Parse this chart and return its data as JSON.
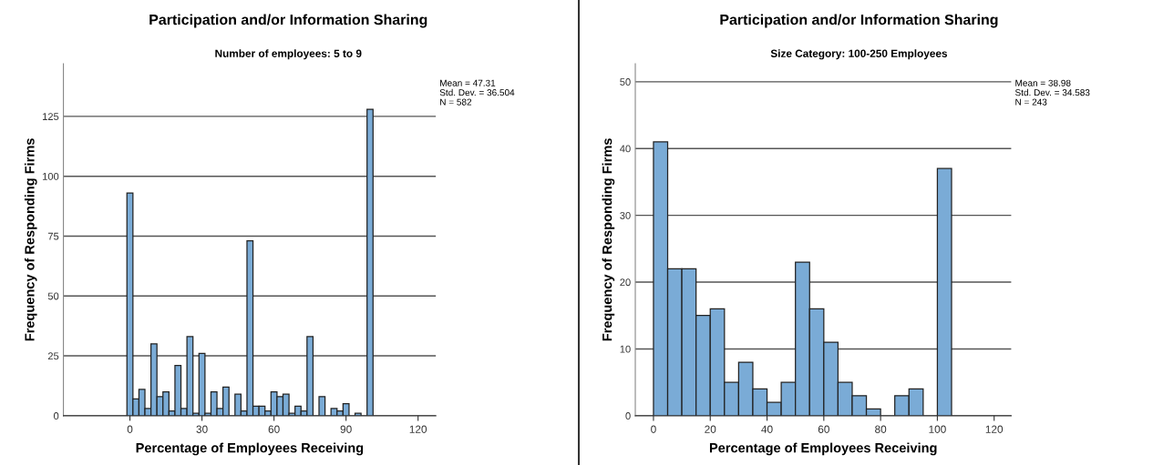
{
  "chart_data": [
    {
      "type": "histogram",
      "title": "Participation and/or Information Sharing",
      "subtitle": "Number of employees: 5 to 9",
      "xlabel": "Percentage of Employees Receiving",
      "ylabel": "Frequency of Responding Firms",
      "bins": [
        -1.25,
        1.25,
        3.75,
        6.25,
        8.75,
        11.25,
        13.75,
        16.25,
        18.75,
        21.25,
        23.75,
        26.25,
        28.75,
        31.25,
        33.75,
        36.25,
        38.75,
        41.25,
        43.75,
        46.25,
        48.75,
        51.25,
        53.75,
        56.25,
        58.75,
        61.25,
        63.75,
        66.25,
        68.75,
        71.25,
        73.75,
        76.25,
        78.75,
        81.25,
        83.75,
        86.25,
        88.75,
        91.25,
        93.75,
        96.25,
        98.75,
        101.25
      ],
      "values": [
        93,
        7,
        11,
        3,
        30,
        8,
        10,
        2,
        21,
        3,
        33,
        1,
        26,
        1,
        10,
        3,
        12,
        0,
        9,
        2,
        73,
        4,
        4,
        2,
        10,
        8,
        9,
        1,
        4,
        2,
        33,
        0,
        8,
        0,
        3,
        2,
        5,
        0,
        1,
        0,
        128
      ],
      "color": "#7aabd6",
      "xlim": [
        -27.7,
        127.4
      ],
      "xticks": [
        0,
        30,
        60,
        90,
        120
      ],
      "ylim": [
        0,
        147
      ],
      "yticks": [
        0,
        25,
        50,
        75,
        100,
        125
      ],
      "grid": "y",
      "annotations": [
        "Mean = 47.31",
        "Std. Dev. = 36.504",
        "N = 582"
      ]
    },
    {
      "type": "histogram",
      "title": "Participation and/or Information Sharing",
      "subtitle": "Size Category: 100-250 Employees",
      "xlabel": "Percentage of Employees Receiving",
      "ylabel": "Frequency of Responding Firms",
      "bins": [
        0,
        5,
        10,
        15,
        20,
        25,
        30,
        35,
        40,
        45,
        50,
        55,
        60,
        65,
        70,
        75,
        80,
        85,
        90,
        95,
        100,
        105
      ],
      "values": [
        41,
        22,
        22,
        15,
        16,
        5,
        8,
        4,
        2,
        5,
        23,
        16,
        11,
        5,
        3,
        1,
        0,
        3,
        4,
        0,
        37
      ],
      "color": "#7aabd6",
      "xlim": [
        -6.4,
        126
      ],
      "xticks": [
        0,
        20,
        40,
        60,
        80,
        100,
        120
      ],
      "ylim": [
        0,
        52.7
      ],
      "yticks": [
        0,
        10,
        20,
        30,
        40,
        50
      ],
      "grid": "y",
      "annotations": [
        "Mean = 38.98",
        "Std. Dev. = 34.583",
        "N = 243"
      ]
    }
  ]
}
